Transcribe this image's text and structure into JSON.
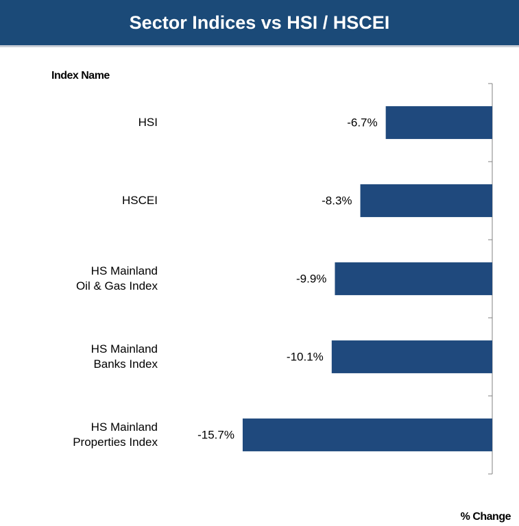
{
  "chart_data": {
    "type": "bar",
    "orientation": "horizontal",
    "title": "Sector Indices vs HSI / HSCEI",
    "y_label": "Index Name",
    "x_label": "% Change",
    "categories": [
      "HSI",
      "HSCEI",
      "HS Mainland\nOil & Gas Index",
      "HS Mainland\nBanks Index",
      "HS Mainland\nProperties Index"
    ],
    "values": [
      -6.7,
      -8.3,
      -9.9,
      -10.1,
      -15.7
    ],
    "value_labels": [
      "-6.7%",
      "-8.3%",
      "-9.9%",
      "-10.1%",
      "-15.7%"
    ],
    "color": "#1f497d",
    "xlim": [
      -16,
      0
    ]
  }
}
